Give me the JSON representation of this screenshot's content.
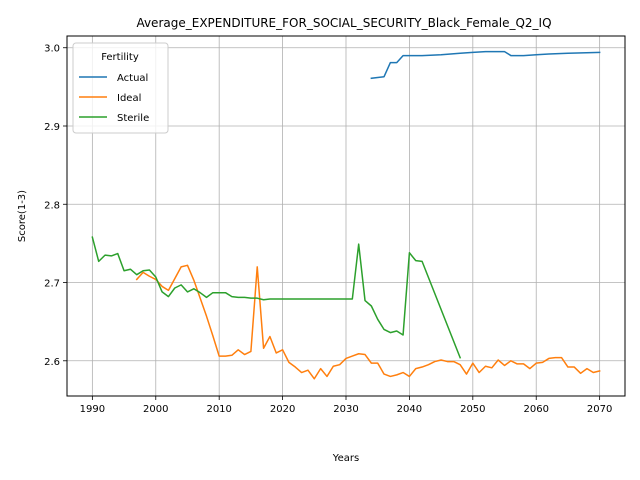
{
  "chart_data": {
    "type": "line",
    "title": "Average_EXPENDITURE_FOR_SOCIAL_SECURITY_Black_Female_Q2_IQ",
    "xlabel": "Years",
    "ylabel": "Score(1-3)",
    "xlim": [
      1986,
      2074
    ],
    "ylim": [
      2.555,
      3.015
    ],
    "xticks": [
      1990,
      2000,
      2010,
      2020,
      2030,
      2040,
      2050,
      2060,
      2070
    ],
    "yticks": [
      2.6,
      2.7,
      2.8,
      2.9,
      3.0
    ],
    "xtick_labels": [
      "1990",
      "2000",
      "2010",
      "2020",
      "2030",
      "2040",
      "2050",
      "2060",
      "2070"
    ],
    "ytick_labels": [
      "2.6",
      "2.7",
      "2.8",
      "2.9",
      "3.0"
    ],
    "grid": true,
    "legend": {
      "title": "Fertility",
      "placement": "top-left"
    },
    "series": [
      {
        "name": "Actual",
        "color": "#1f77b4",
        "points": [
          [
            2034,
            2.961
          ],
          [
            2035,
            2.962
          ],
          [
            2036,
            2.963
          ],
          [
            2037,
            2.981
          ],
          [
            2038,
            2.981
          ],
          [
            2039,
            2.99
          ],
          [
            2040,
            2.99
          ],
          [
            2042,
            2.99
          ],
          [
            2045,
            2.991
          ],
          [
            2048,
            2.993
          ],
          [
            2050,
            2.994
          ],
          [
            2052,
            2.995
          ],
          [
            2055,
            2.995
          ],
          [
            2056,
            2.99
          ],
          [
            2058,
            2.99
          ],
          [
            2060,
            2.991
          ],
          [
            2062,
            2.992
          ],
          [
            2065,
            2.993
          ],
          [
            2070,
            2.994
          ]
        ]
      },
      {
        "name": "Ideal",
        "color": "#ff7f0e",
        "points": [
          [
            1997,
            2.704
          ],
          [
            1998,
            2.713
          ],
          [
            1999,
            2.708
          ],
          [
            2000,
            2.704
          ],
          [
            2001,
            2.695
          ],
          [
            2002,
            2.69
          ],
          [
            2003,
            2.705
          ],
          [
            2004,
            2.72
          ],
          [
            2005,
            2.722
          ],
          [
            2006,
            2.703
          ],
          [
            2007,
            2.68
          ],
          [
            2008,
            2.657
          ],
          [
            2009,
            2.632
          ],
          [
            2010,
            2.606
          ],
          [
            2011,
            2.606
          ],
          [
            2012,
            2.607
          ],
          [
            2013,
            2.614
          ],
          [
            2014,
            2.608
          ],
          [
            2015,
            2.612
          ],
          [
            2016,
            2.72
          ],
          [
            2017,
            2.616
          ],
          [
            2018,
            2.631
          ],
          [
            2019,
            2.61
          ],
          [
            2020,
            2.614
          ],
          [
            2021,
            2.598
          ],
          [
            2022,
            2.592
          ],
          [
            2023,
            2.585
          ],
          [
            2024,
            2.588
          ],
          [
            2025,
            2.577
          ],
          [
            2026,
            2.59
          ],
          [
            2027,
            2.58
          ],
          [
            2028,
            2.593
          ],
          [
            2029,
            2.595
          ],
          [
            2030,
            2.603
          ],
          [
            2031,
            2.606
          ],
          [
            2032,
            2.609
          ],
          [
            2033,
            2.608
          ],
          [
            2034,
            2.597
          ],
          [
            2035,
            2.597
          ],
          [
            2036,
            2.583
          ],
          [
            2037,
            2.58
          ],
          [
            2038,
            2.582
          ],
          [
            2039,
            2.585
          ],
          [
            2040,
            2.58
          ],
          [
            2041,
            2.59
          ],
          [
            2042,
            2.592
          ],
          [
            2043,
            2.595
          ],
          [
            2044,
            2.599
          ],
          [
            2045,
            2.601
          ],
          [
            2046,
            2.599
          ],
          [
            2047,
            2.599
          ],
          [
            2048,
            2.595
          ],
          [
            2049,
            2.583
          ],
          [
            2050,
            2.597
          ],
          [
            2051,
            2.585
          ],
          [
            2052,
            2.593
          ],
          [
            2053,
            2.591
          ],
          [
            2054,
            2.601
          ],
          [
            2055,
            2.594
          ],
          [
            2056,
            2.6
          ],
          [
            2057,
            2.596
          ],
          [
            2058,
            2.596
          ],
          [
            2059,
            2.59
          ],
          [
            2060,
            2.597
          ],
          [
            2061,
            2.598
          ],
          [
            2062,
            2.603
          ],
          [
            2063,
            2.604
          ],
          [
            2064,
            2.604
          ],
          [
            2065,
            2.592
          ],
          [
            2066,
            2.592
          ],
          [
            2067,
            2.584
          ],
          [
            2068,
            2.59
          ],
          [
            2069,
            2.585
          ],
          [
            2070,
            2.587
          ]
        ]
      },
      {
        "name": "Sterile",
        "color": "#2ca02c",
        "points": [
          [
            1990,
            2.758
          ],
          [
            1991,
            2.727
          ],
          [
            1992,
            2.735
          ],
          [
            1993,
            2.734
          ],
          [
            1994,
            2.737
          ],
          [
            1995,
            2.715
          ],
          [
            1996,
            2.717
          ],
          [
            1997,
            2.71
          ],
          [
            1998,
            2.715
          ],
          [
            1999,
            2.716
          ],
          [
            2000,
            2.707
          ],
          [
            2001,
            2.688
          ],
          [
            2002,
            2.682
          ],
          [
            2003,
            2.693
          ],
          [
            2004,
            2.697
          ],
          [
            2005,
            2.688
          ],
          [
            2006,
            2.692
          ],
          [
            2007,
            2.687
          ],
          [
            2008,
            2.681
          ],
          [
            2009,
            2.687
          ],
          [
            2010,
            2.687
          ],
          [
            2011,
            2.687
          ],
          [
            2012,
            2.682
          ],
          [
            2013,
            2.681
          ],
          [
            2014,
            2.681
          ],
          [
            2015,
            2.68
          ],
          [
            2016,
            2.68
          ],
          [
            2017,
            2.678
          ],
          [
            2018,
            2.679
          ],
          [
            2020,
            2.679
          ],
          [
            2025,
            2.679
          ],
          [
            2030,
            2.679
          ],
          [
            2031,
            2.679
          ],
          [
            2032,
            2.749
          ],
          [
            2033,
            2.677
          ],
          [
            2034,
            2.67
          ],
          [
            2035,
            2.653
          ],
          [
            2036,
            2.64
          ],
          [
            2037,
            2.636
          ],
          [
            2038,
            2.638
          ],
          [
            2039,
            2.633
          ],
          [
            2040,
            2.738
          ],
          [
            2041,
            2.728
          ],
          [
            2042,
            2.727
          ],
          [
            2048,
            2.604
          ]
        ]
      }
    ]
  }
}
